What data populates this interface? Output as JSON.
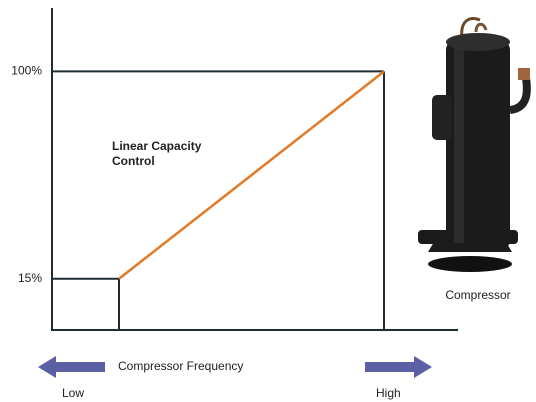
{
  "chart_data": {
    "type": "line",
    "categories": [
      null,
      null
    ],
    "series": [
      {
        "name": null,
        "color": "#e07b2a",
        "values": [
          15,
          100
        ]
      }
    ],
    "ylim": [
      -6,
      126
    ],
    "yticks": [
      {
        "value": 15,
        "label": "15%"
      },
      {
        "value": 100,
        "label": "100%"
      }
    ],
    "annotation": [
      "Linear Capacity",
      "Control"
    ],
    "x_label": "Compressor Frequency",
    "x_low": "Low",
    "x_high": "High",
    "image_caption": "Compressor"
  }
}
